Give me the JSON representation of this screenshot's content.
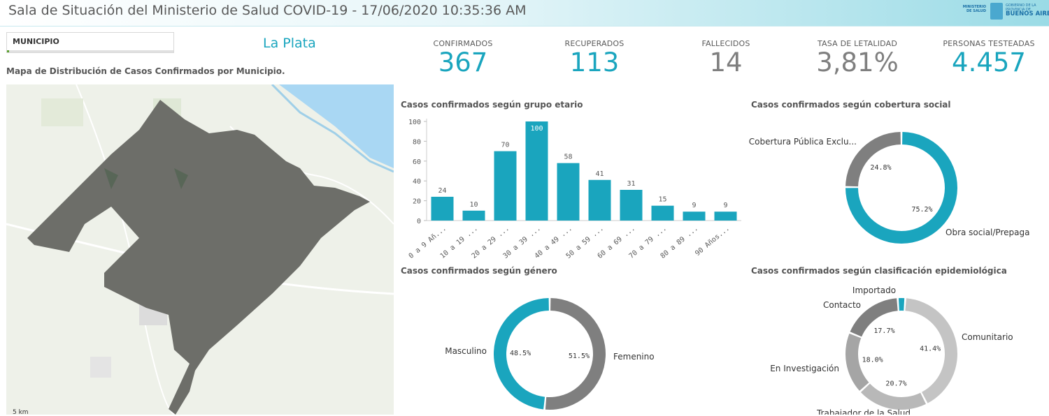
{
  "header": {
    "title": "Sala de Situación del Ministerio de Salud COVID-19 - 17/06/2020 10:35:36 AM",
    "logo_line1": "MINISTERIO DE SALUD",
    "logo_line2": "GOBIERNO DE LA PROVINCIA DE",
    "logo_line3": "BUENOS AIRES"
  },
  "filter": {
    "label": "MUNICIPIO",
    "value": "La Plata"
  },
  "map": {
    "title": "Mapa de Distribución de Casos Confirmados por Municipio.",
    "scale": "5 km"
  },
  "kpis": [
    {
      "label": "CONFIRMADOS",
      "value": "367",
      "color": "#1aa5be"
    },
    {
      "label": "RECUPERADOS",
      "value": "113",
      "color": "#1aa5be"
    },
    {
      "label": "FALLECIDOS",
      "value": "14",
      "color": "#7f7f7f"
    },
    {
      "label": "TASA DE LETALIDAD",
      "value": "3,81%",
      "color": "#7f7f7f"
    },
    {
      "label": "PERSONAS TESTEADAS",
      "value": "4.457",
      "color": "#1aa5be"
    }
  ],
  "colors": {
    "accent": "#1aa5be",
    "gray_dark": "#7f7f7f",
    "gray_mid": "#a5a5a5",
    "gray_light": "#c4c4c4"
  },
  "chart_data": [
    {
      "type": "bar",
      "title": "Casos confirmados según grupo etario",
      "categories": [
        "0 a 9 Añ...",
        "10 a 19 ...",
        "20 a 29 ...",
        "30 a 39 ...",
        "40 a 49 ...",
        "50 a 59 ...",
        "60 a 69 ...",
        "70 a 79 ...",
        "80 a 89 ...",
        "90 Años..."
      ],
      "values": [
        24,
        10,
        70,
        100,
        58,
        41,
        31,
        15,
        9,
        9
      ],
      "yticks": [
        0,
        20,
        40,
        60,
        80,
        100
      ],
      "ylim": [
        0,
        100
      ],
      "color": "#1aa5be"
    },
    {
      "type": "pie",
      "title": "Casos confirmados según cobertura social",
      "slices": [
        {
          "label": "Obra social/Prepaga",
          "value": 75.2,
          "pct": "75.2%",
          "color": "#1aa5be"
        },
        {
          "label": "Cobertura Pública Exclu...",
          "value": 24.8,
          "pct": "24.8%",
          "color": "#7f7f7f"
        }
      ]
    },
    {
      "type": "pie",
      "title": "Casos confirmados según género",
      "slices": [
        {
          "label": "Femenino",
          "value": 51.5,
          "pct": "51.5%",
          "color": "#7f7f7f"
        },
        {
          "label": "Masculino",
          "value": 48.5,
          "pct": "48.5%",
          "color": "#1aa5be"
        }
      ]
    },
    {
      "type": "pie",
      "title": "Casos confirmados según clasificación epidemiológica",
      "slices": [
        {
          "label": "Comunitario",
          "value": 41.4,
          "pct": "41.4%",
          "color": "#c4c4c4"
        },
        {
          "label": "Trabajador de la Salud",
          "value": 20.7,
          "pct": "20.7%",
          "color": "#b8b8b8"
        },
        {
          "label": "En Investigación",
          "value": 18.0,
          "pct": "18.0%",
          "color": "#a5a5a5"
        },
        {
          "label": "Contacto",
          "value": 17.7,
          "pct": "17.7%",
          "color": "#7f7f7f"
        },
        {
          "label": "Importado",
          "value": 2.2,
          "pct": "",
          "color": "#1aa5be"
        }
      ]
    }
  ]
}
